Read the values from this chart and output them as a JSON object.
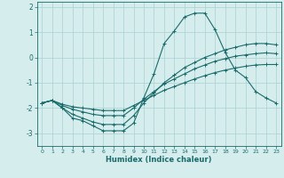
{
  "title": "",
  "xlabel": "Humidex (Indice chaleur)",
  "ylabel": "",
  "background_color": "#d6eded",
  "grid_color": "#b0d4d4",
  "line_color": "#1a6b6b",
  "xlim": [
    -0.5,
    23.5
  ],
  "ylim": [
    -3.5,
    2.2
  ],
  "yticks": [
    -3,
    -2,
    -1,
    0,
    1,
    2
  ],
  "xticks": [
    0,
    1,
    2,
    3,
    4,
    5,
    6,
    7,
    8,
    9,
    10,
    11,
    12,
    13,
    14,
    15,
    16,
    17,
    18,
    19,
    20,
    21,
    22,
    23
  ],
  "series": [
    {
      "x": [
        0,
        1,
        2,
        3,
        4,
        5,
        6,
        7,
        8,
        9,
        10,
        11,
        12,
        13,
        14,
        15,
        16,
        17,
        18,
        19,
        20,
        21,
        22,
        23
      ],
      "y": [
        -1.8,
        -1.7,
        -2.0,
        -2.4,
        -2.5,
        -2.7,
        -2.9,
        -2.9,
        -2.9,
        -2.6,
        -1.6,
        -0.65,
        0.55,
        1.05,
        1.6,
        1.75,
        1.75,
        1.1,
        0.2,
        -0.5,
        -0.8,
        -1.35,
        -1.6,
        -1.8
      ]
    },
    {
      "x": [
        0,
        1,
        2,
        3,
        4,
        5,
        6,
        7,
        8,
        9,
        10,
        11,
        12,
        13,
        14,
        15,
        16,
        17,
        18,
        19,
        20,
        21,
        22,
        23
      ],
      "y": [
        -1.8,
        -1.7,
        -2.0,
        -2.25,
        -2.4,
        -2.55,
        -2.65,
        -2.65,
        -2.65,
        -2.3,
        -1.8,
        -1.4,
        -1.0,
        -0.7,
        -0.4,
        -0.2,
        0.0,
        0.15,
        0.3,
        0.4,
        0.5,
        0.55,
        0.55,
        0.5
      ]
    },
    {
      "x": [
        0,
        1,
        2,
        3,
        4,
        5,
        6,
        7,
        8,
        9,
        10,
        11,
        12,
        13,
        14,
        15,
        16,
        17,
        18,
        19,
        20,
        21,
        22,
        23
      ],
      "y": [
        -1.8,
        -1.7,
        -1.9,
        -2.05,
        -2.15,
        -2.25,
        -2.3,
        -2.3,
        -2.3,
        -2.0,
        -1.65,
        -1.35,
        -1.05,
        -0.85,
        -0.65,
        -0.45,
        -0.3,
        -0.15,
        -0.05,
        0.05,
        0.1,
        0.15,
        0.18,
        0.15
      ]
    },
    {
      "x": [
        0,
        1,
        2,
        3,
        4,
        5,
        6,
        7,
        8,
        9,
        10,
        11,
        12,
        13,
        14,
        15,
        16,
        17,
        18,
        19,
        20,
        21,
        22,
        23
      ],
      "y": [
        -1.8,
        -1.7,
        -1.85,
        -1.95,
        -2.0,
        -2.05,
        -2.1,
        -2.1,
        -2.1,
        -1.9,
        -1.7,
        -1.5,
        -1.3,
        -1.15,
        -1.0,
        -0.85,
        -0.72,
        -0.6,
        -0.5,
        -0.42,
        -0.35,
        -0.3,
        -0.28,
        -0.28
      ]
    }
  ]
}
